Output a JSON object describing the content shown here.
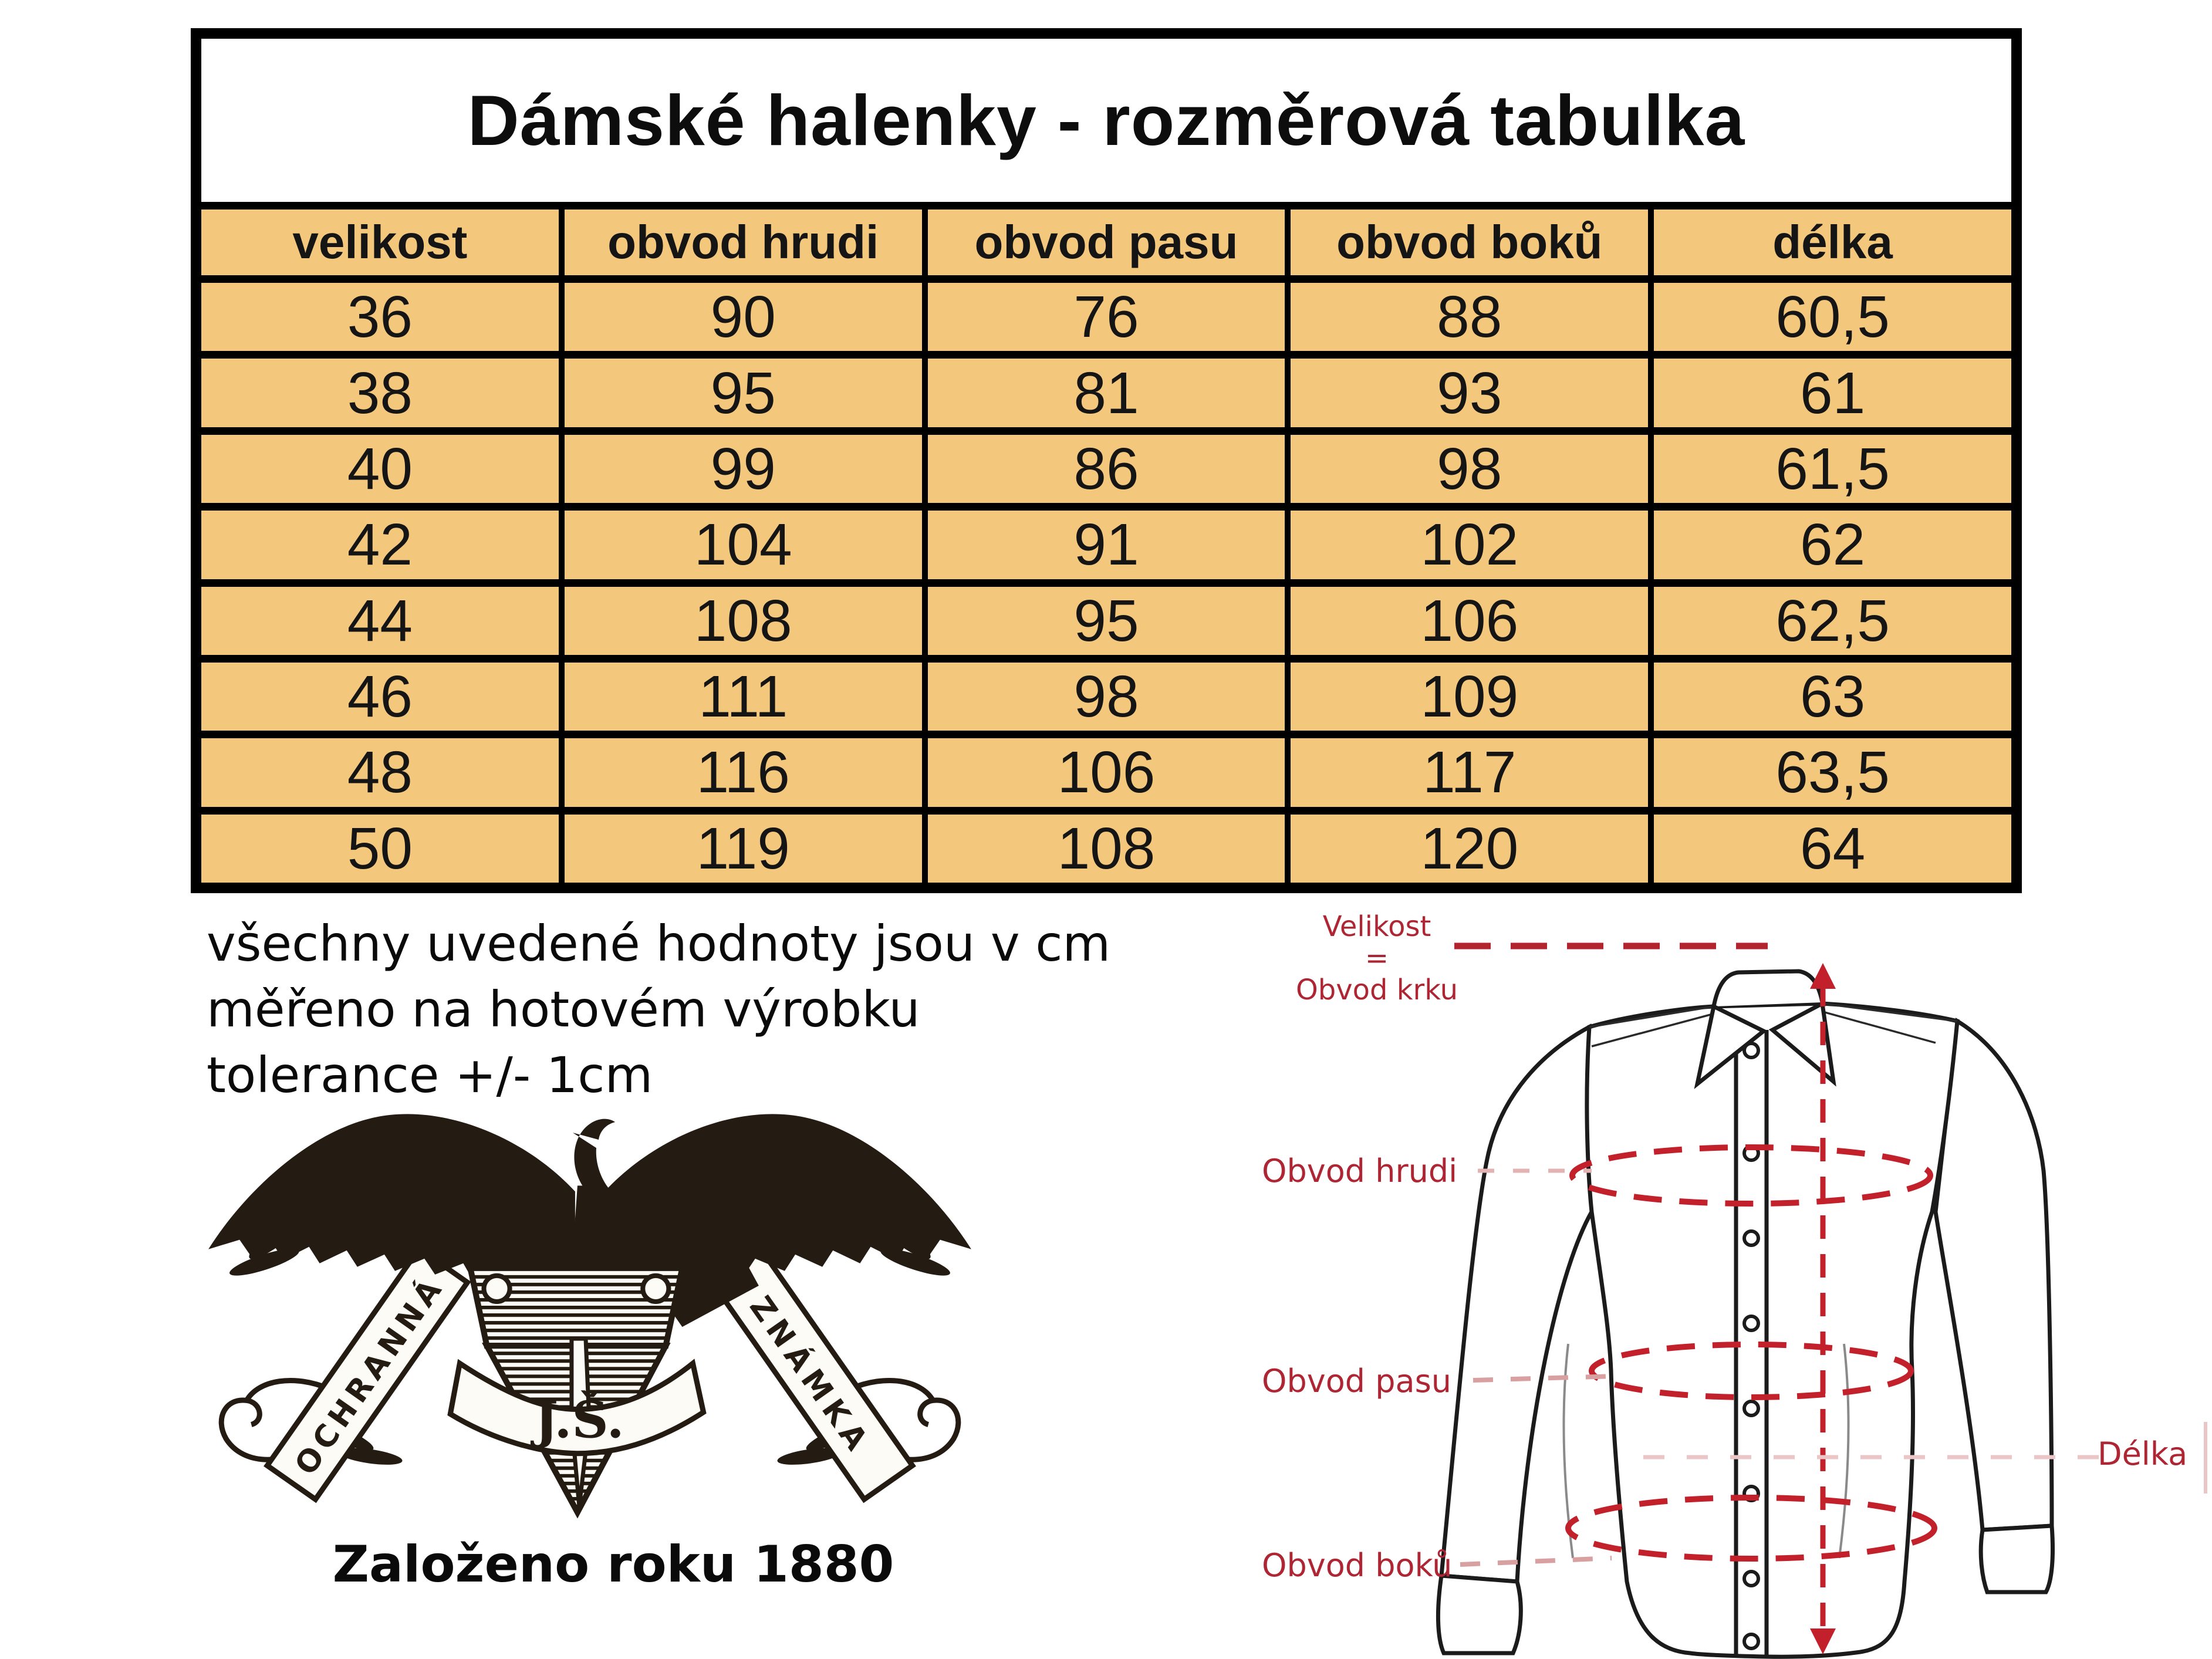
{
  "table": {
    "title": "Dámské halenky - rozměrová tabulka",
    "columns": [
      "velikost",
      "obvod hrudi",
      "obvod pasu",
      "obvod boků",
      "délka"
    ],
    "rows": [
      [
        "36",
        "90",
        "76",
        "88",
        "60,5"
      ],
      [
        "38",
        "95",
        "81",
        "93",
        "61"
      ],
      [
        "40",
        "99",
        "86",
        "98",
        "61,5"
      ],
      [
        "42",
        "104",
        "91",
        "102",
        "62"
      ],
      [
        "44",
        "108",
        "95",
        "106",
        "62,5"
      ],
      [
        "46",
        "111",
        "98",
        "109",
        "63"
      ],
      [
        "48",
        "116",
        "106",
        "117",
        "63,5"
      ],
      [
        "50",
        "119",
        "108",
        "120",
        "64"
      ]
    ],
    "cell_color": "#f4c87c"
  },
  "chart_data": {
    "type": "table",
    "title": "Dámské halenky - rozměrová tabulka",
    "columns": [
      "velikost",
      "obvod hrudi",
      "obvod pasu",
      "obvod boků",
      "délka"
    ],
    "rows": [
      [
        36,
        90,
        76,
        88,
        "60,5"
      ],
      [
        38,
        95,
        81,
        93,
        "61"
      ],
      [
        40,
        99,
        86,
        98,
        "61,5"
      ],
      [
        42,
        104,
        91,
        102,
        "62"
      ],
      [
        44,
        108,
        95,
        106,
        "62,5"
      ],
      [
        46,
        111,
        98,
        109,
        "63"
      ],
      [
        48,
        116,
        106,
        117,
        "63,5"
      ],
      [
        50,
        119,
        108,
        120,
        "64"
      ]
    ]
  },
  "notes": {
    "line1": "všechny uvedené hodnoty jsou v cm",
    "line2": "měřeno na hotovém výrobku",
    "line3": "tolerance +/- 1cm"
  },
  "logo": {
    "ribbon_left": "OCHRANNÁ",
    "ribbon_right": "ZNÁMKA",
    "monogram": "J.Š.",
    "caption": "Založeno roku 1880"
  },
  "diagram": {
    "label_size_line1": "Velikost",
    "label_size_line2": "=",
    "label_size_line3": "Obvod krku",
    "label_chest": "Obvod hrudi",
    "label_waist": "Obvod pasu",
    "label_hips": "Obvod boků",
    "label_length": "Délka",
    "label_color": "#ae2633",
    "ellipse_color": "#c2202a",
    "faint_dash_color": "#dfa8a8"
  }
}
